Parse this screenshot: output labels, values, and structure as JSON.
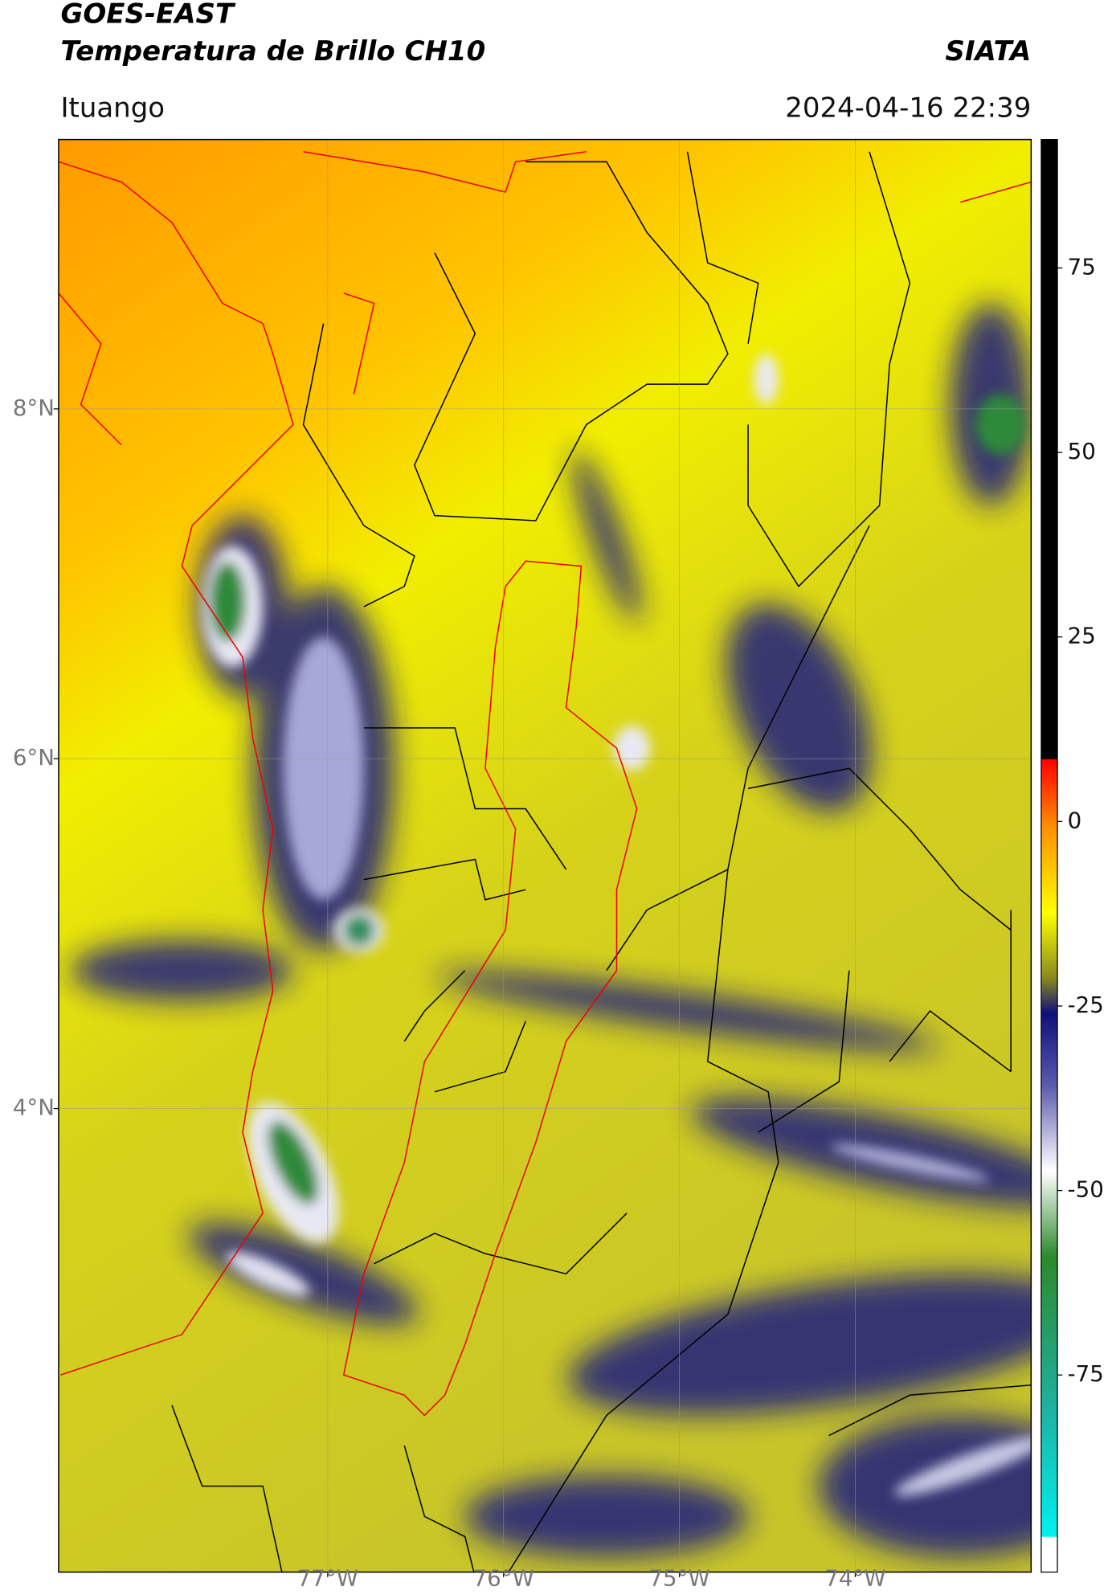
{
  "header": {
    "title": "GOES-EAST",
    "subtitle": "Temperatura de Brillo CH10",
    "source": "SIATA",
    "location": "Ituango",
    "datetime": "2024-04-16 22:39"
  },
  "map": {
    "xlim": [
      -78.53,
      -73.0
    ],
    "ylim": [
      1.35,
      9.54
    ],
    "xticks": [
      {
        "value": -77,
        "label": "77°W"
      },
      {
        "value": -76,
        "label": "76°W"
      },
      {
        "value": -75,
        "label": "75°W"
      },
      {
        "value": -74,
        "label": "74°W"
      }
    ],
    "yticks": [
      {
        "value": 8,
        "label": "8°N"
      },
      {
        "value": 6,
        "label": "6°N"
      },
      {
        "value": 4,
        "label": "4°N"
      }
    ],
    "grid": true
  },
  "colorbar": {
    "lim": [
      -101.7,
      92.4
    ],
    "ticks": [
      75,
      50,
      25,
      0,
      -25,
      -50,
      -75
    ]
  }
}
